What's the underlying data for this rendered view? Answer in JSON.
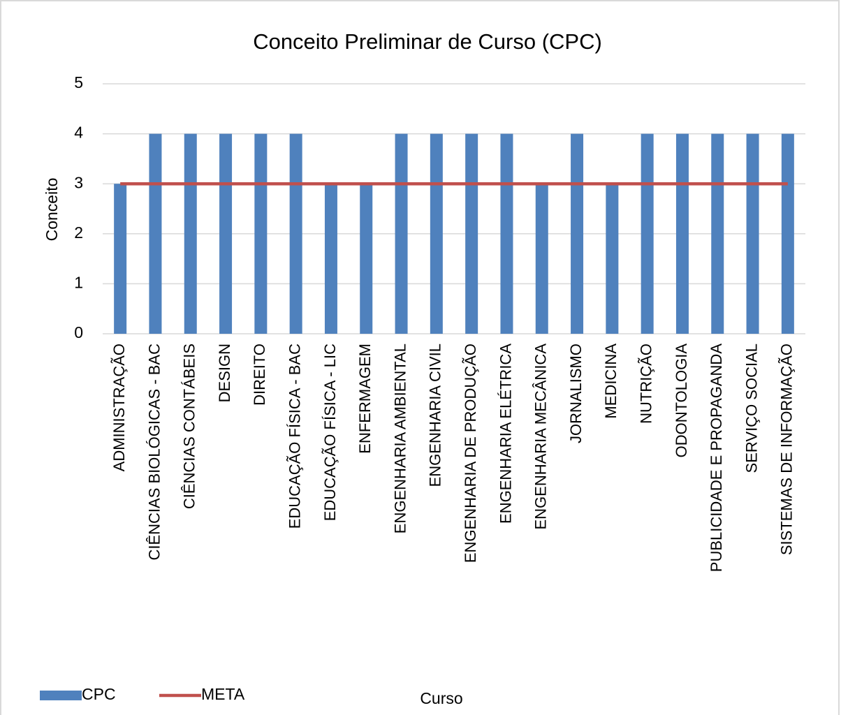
{
  "chart_data": {
    "type": "bar",
    "title": "Conceito Preliminar de Curso (CPC)",
    "x_label": "Curso",
    "y_label": "Conceito",
    "categories": [
      "ADMINISTRAÇÃO",
      "CIÊNCIAS BIOLÓGICAS - BAC",
      "CIÊNCIAS CONTÁBEIS",
      "DESIGN",
      "DIREITO",
      "EDUCAÇÃO FÍSICA - BAC",
      "EDUCAÇÃO FÍSICA - LIC",
      "ENFERMAGEM",
      "ENGENHARIA AMBIENTAL",
      "ENGENHARIA CIVIL",
      "ENGENHARIA DE PRODUÇÃO",
      "ENGENHARIA ELÉTRICA",
      "ENGENHARIA MECÂNICA",
      "JORNALISMO",
      "MEDICINA",
      "NUTRIÇÃO",
      "ODONTOLOGIA",
      "PUBLICIDADE E PROPAGANDA",
      "SERVIÇO SOCIAL",
      "SISTEMAS DE INFORMAÇÃO"
    ],
    "series": [
      {
        "name": "CPC",
        "type": "bar",
        "color": "#4f81bd",
        "values": [
          3,
          4,
          4,
          4,
          4,
          4,
          3,
          3,
          4,
          4,
          4,
          4,
          3,
          4,
          3,
          4,
          4,
          4,
          4,
          4
        ]
      },
      {
        "name": "META",
        "type": "line",
        "color": "#c0504d",
        "values": [
          3,
          3,
          3,
          3,
          3,
          3,
          3,
          3,
          3,
          3,
          3,
          3,
          3,
          3,
          3,
          3,
          3,
          3,
          3,
          3
        ]
      }
    ],
    "ylim": [
      0,
      5
    ],
    "yticks": [
      0,
      1,
      2,
      3,
      4,
      5
    ],
    "grid": true,
    "legend": "bottom-left"
  }
}
